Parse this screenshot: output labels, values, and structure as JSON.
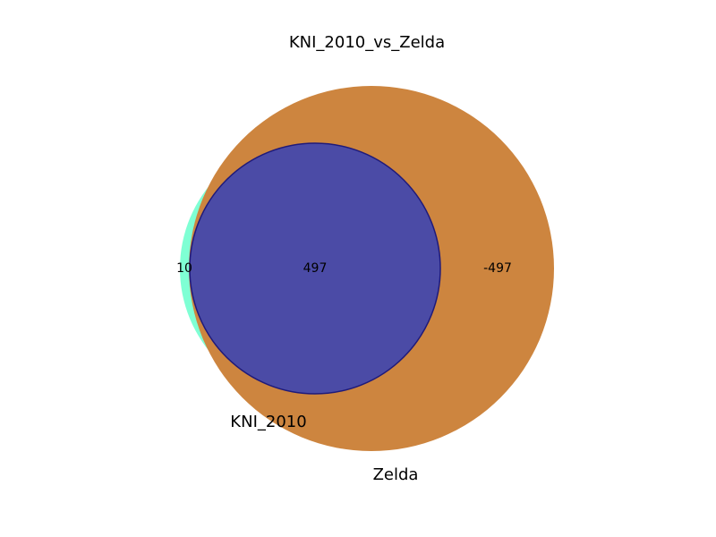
{
  "title": "KNI_2010_vs_Zelda",
  "sets": [
    {
      "name": "KNI_2010",
      "color": "#7fffd4"
    },
    {
      "name": "Zelda",
      "color": "#cd853f"
    }
  ],
  "overlap_color": "#4b4ba6",
  "overlap_edge_color": "#1f1a7a",
  "regions": {
    "only_a": "10",
    "intersection": "497",
    "only_b": "-497"
  }
}
